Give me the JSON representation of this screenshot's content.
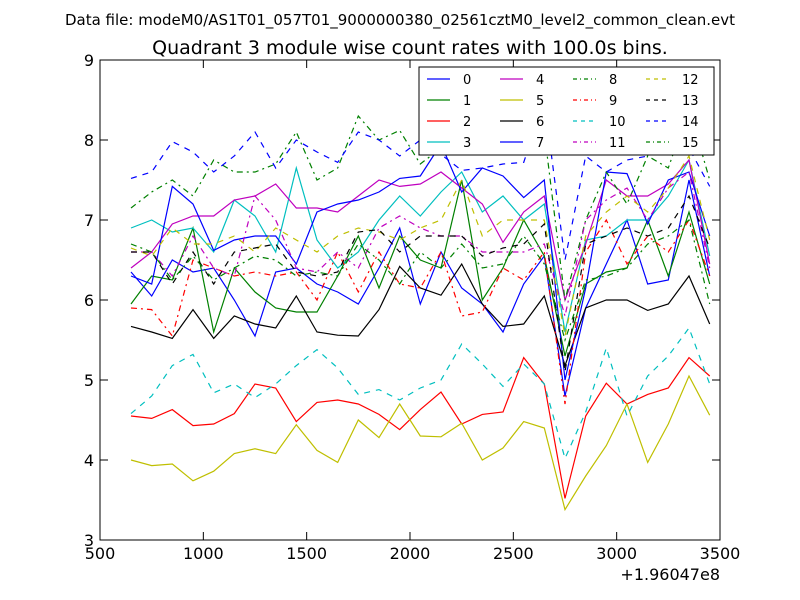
{
  "header": {
    "suptitle": "Data file: modeM0/AS1T01_057T01_9000000380_02561cztM0_level2_common_clean.evt"
  },
  "chart_data": {
    "type": "line",
    "title": "Quadrant 3 module wise count rates with 100.0s bins.",
    "xlabel": "",
    "ylabel": "",
    "offset_label": "+1.96047e8",
    "xlim": [
      500,
      3500
    ],
    "ylim": [
      3,
      9
    ],
    "xticks": [
      500,
      1000,
      1500,
      2000,
      2500,
      3000,
      3500
    ],
    "yticks": [
      3,
      4,
      5,
      6,
      7,
      8,
      9
    ],
    "grid": false,
    "legend": {
      "placement": "top-right",
      "columns": 4
    },
    "x": [
      650,
      750,
      850,
      950,
      1050,
      1150,
      1250,
      1350,
      1450,
      1550,
      1650,
      1750,
      1850,
      1950,
      2050,
      2150,
      2250,
      2350,
      2450,
      2550,
      2650,
      2750,
      2850,
      2950,
      3050,
      3150,
      3250,
      3350,
      3450
    ],
    "series": [
      {
        "name": "0",
        "color": "#0000ff",
        "dash": "solid",
        "values": [
          6.35,
          6.05,
          6.5,
          6.35,
          6.4,
          6.0,
          5.55,
          6.35,
          6.4,
          6.2,
          6.1,
          5.95,
          6.4,
          6.9,
          5.95,
          6.6,
          6.15,
          5.95,
          5.6,
          6.2,
          6.55,
          4.8,
          5.9,
          6.45,
          7.0,
          6.2,
          6.25,
          7.5,
          6.3
        ]
      },
      {
        "name": "1",
        "color": "#008000",
        "dash": "solid",
        "values": [
          5.95,
          6.3,
          6.25,
          6.9,
          5.6,
          6.4,
          6.1,
          5.9,
          5.85,
          5.85,
          6.3,
          6.8,
          6.15,
          6.8,
          6.5,
          6.4,
          7.5,
          6.0,
          6.4,
          7.0,
          6.55,
          5.3,
          6.2,
          6.35,
          6.4,
          7.0,
          6.3,
          7.1,
          6.2
        ]
      },
      {
        "name": "2",
        "color": "#ff0000",
        "dash": "solid",
        "values": [
          4.55,
          4.52,
          4.63,
          4.43,
          4.45,
          4.58,
          4.95,
          4.9,
          4.48,
          4.72,
          4.75,
          4.7,
          4.57,
          4.38,
          4.63,
          4.85,
          4.45,
          4.57,
          4.6,
          5.28,
          4.95,
          3.52,
          4.55,
          4.96,
          4.7,
          4.82,
          4.9,
          5.28,
          5.05
        ]
      },
      {
        "name": "3",
        "color": "#00bfbf",
        "dash": "solid",
        "values": [
          6.9,
          7.0,
          6.85,
          6.9,
          6.6,
          7.25,
          7.05,
          6.6,
          7.65,
          6.75,
          6.4,
          6.6,
          7.0,
          7.3,
          7.05,
          7.35,
          7.6,
          7.1,
          7.3,
          7.0,
          7.2,
          5.6,
          6.75,
          6.8,
          7.0,
          7.0,
          7.3,
          7.75,
          6.55
        ]
      },
      {
        "name": "4",
        "color": "#bf00bf",
        "dash": "solid",
        "values": [
          6.4,
          6.6,
          6.95,
          7.05,
          7.05,
          7.25,
          7.3,
          7.45,
          7.15,
          7.15,
          7.1,
          7.3,
          7.5,
          7.42,
          7.45,
          7.6,
          7.4,
          7.2,
          6.72,
          7.1,
          7.3,
          6.0,
          6.7,
          7.5,
          7.3,
          7.3,
          7.45,
          7.75,
          6.45
        ]
      },
      {
        "name": "5",
        "color": "#bfbf00",
        "dash": "solid",
        "values": [
          4.0,
          3.93,
          3.95,
          3.74,
          3.86,
          4.08,
          4.14,
          4.08,
          4.44,
          4.12,
          3.97,
          4.5,
          4.28,
          4.7,
          4.3,
          4.29,
          4.46,
          4.0,
          4.15,
          4.48,
          4.4,
          3.38,
          3.8,
          4.18,
          4.7,
          3.97,
          4.45,
          5.05,
          4.56
        ]
      },
      {
        "name": "6",
        "color": "#000000",
        "dash": "solid",
        "values": [
          5.67,
          5.6,
          5.52,
          5.88,
          5.52,
          5.8,
          5.7,
          5.65,
          6.05,
          5.6,
          5.56,
          5.55,
          5.88,
          6.42,
          6.15,
          6.06,
          6.45,
          5.95,
          5.67,
          5.7,
          6.05,
          5.18,
          5.9,
          6.0,
          6.0,
          5.87,
          5.95,
          6.3,
          5.7
        ]
      },
      {
        "name": "7",
        "color": "#0000ff",
        "dash": "solid",
        "values": [
          6.3,
          6.2,
          7.42,
          7.2,
          6.62,
          6.75,
          6.8,
          6.8,
          6.45,
          7.1,
          7.2,
          7.25,
          7.35,
          7.52,
          7.55,
          7.95,
          7.35,
          7.65,
          7.55,
          7.28,
          7.5,
          5.0,
          6.15,
          7.6,
          7.58,
          6.95,
          7.5,
          7.6,
          6.8
        ]
      },
      {
        "name": "8",
        "color": "#008000",
        "dash": "dashdot",
        "values": [
          7.15,
          7.35,
          7.5,
          7.3,
          7.75,
          7.6,
          7.6,
          7.7,
          8.1,
          7.5,
          7.65,
          8.3,
          8.0,
          8.12,
          7.7,
          7.9,
          8.4,
          7.95,
          7.95,
          8.0,
          8.1,
          6.0,
          7.0,
          7.6,
          7.2,
          7.8,
          7.65,
          8.4,
          7.5
        ]
      },
      {
        "name": "9",
        "color": "#ff0000",
        "dash": "dashdot",
        "values": [
          5.9,
          5.88,
          5.55,
          6.5,
          6.4,
          6.3,
          6.35,
          6.3,
          6.35,
          6.0,
          6.6,
          6.1,
          6.6,
          6.2,
          6.15,
          6.6,
          5.8,
          5.85,
          6.4,
          6.25,
          6.6,
          4.7,
          6.6,
          7.0,
          6.45,
          6.8,
          6.6,
          7.0,
          6.3
        ]
      },
      {
        "name": "10",
        "color": "#00bfbf",
        "dash": "dashed",
        "values": [
          4.58,
          4.8,
          5.18,
          5.32,
          4.84,
          4.95,
          4.78,
          4.95,
          5.18,
          5.38,
          5.15,
          4.82,
          4.88,
          4.75,
          4.9,
          5.0,
          5.45,
          5.2,
          4.92,
          5.2,
          4.95,
          4.02,
          4.6,
          5.4,
          4.55,
          5.05,
          5.3,
          5.65,
          4.95
        ]
      },
      {
        "name": "11",
        "color": "#bf00bf",
        "dash": "dashdot",
        "values": [
          6.6,
          6.6,
          6.3,
          6.8,
          6.4,
          6.3,
          7.3,
          7.0,
          6.4,
          6.35,
          6.6,
          6.4,
          6.9,
          7.05,
          6.9,
          6.8,
          6.8,
          6.6,
          6.6,
          6.6,
          6.7,
          5.8,
          7.0,
          7.25,
          7.4,
          7.0,
          7.4,
          7.6,
          6.4
        ]
      },
      {
        "name": "12",
        "color": "#bfbf00",
        "dash": "dashed",
        "values": [
          6.65,
          6.55,
          6.9,
          6.7,
          6.7,
          6.8,
          6.6,
          6.9,
          6.75,
          6.6,
          6.8,
          6.9,
          6.85,
          6.75,
          6.9,
          7.0,
          7.5,
          6.8,
          7.0,
          7.0,
          7.0,
          5.55,
          6.8,
          7.1,
          7.3,
          7.1,
          7.4,
          7.8,
          6.75
        ]
      },
      {
        "name": "13",
        "color": "#000000",
        "dash": "dashed",
        "values": [
          6.6,
          6.6,
          6.2,
          6.6,
          6.2,
          6.6,
          6.65,
          6.7,
          6.35,
          6.3,
          6.35,
          6.85,
          6.88,
          6.6,
          6.8,
          6.8,
          6.8,
          6.55,
          6.65,
          6.7,
          6.95,
          5.1,
          6.7,
          6.8,
          6.9,
          6.8,
          6.9,
          7.3,
          6.65
        ]
      },
      {
        "name": "14",
        "color": "#0000ff",
        "dash": "dashed",
        "values": [
          7.52,
          7.6,
          7.98,
          7.85,
          7.6,
          7.8,
          8.1,
          7.65,
          8.0,
          7.85,
          7.72,
          8.1,
          8.0,
          7.8,
          8.0,
          7.82,
          7.62,
          7.65,
          7.7,
          7.72,
          8.5,
          6.5,
          7.8,
          7.6,
          7.75,
          7.8,
          8.0,
          7.9,
          7.42
        ]
      },
      {
        "name": "15",
        "color": "#008000",
        "dash": "dashdot",
        "values": [
          6.7,
          6.6,
          6.25,
          6.55,
          6.25,
          6.4,
          6.55,
          6.5,
          6.3,
          6.35,
          6.3,
          6.7,
          6.5,
          6.2,
          6.6,
          6.4,
          6.7,
          6.4,
          6.45,
          6.8,
          6.45,
          5.5,
          6.25,
          6.3,
          6.4,
          6.7,
          6.8,
          7.0,
          5.95
        ]
      }
    ]
  }
}
